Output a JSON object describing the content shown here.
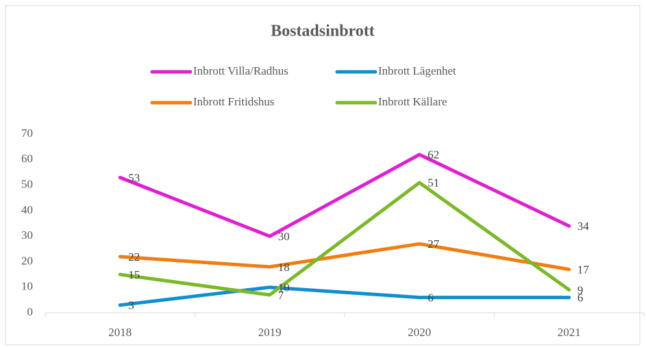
{
  "chart_data": {
    "type": "line",
    "title": "Bostadsinbrott",
    "categories": [
      "2018",
      "2019",
      "2020",
      "2021"
    ],
    "series": [
      {
        "name": "Inbrott Villa/Radhus",
        "color": "#e01fd0",
        "values": [
          53,
          30,
          62,
          34
        ]
      },
      {
        "name": "Inbrott Lägenhet",
        "color": "#0f8fd2",
        "values": [
          3,
          10,
          6,
          6
        ]
      },
      {
        "name": "Inbrott Fritidshus",
        "color": "#f07d12",
        "values": [
          22,
          18,
          27,
          17
        ]
      },
      {
        "name": "Inbrott Källare",
        "color": "#7bb82a",
        "values": [
          15,
          7,
          51,
          9
        ]
      }
    ],
    "ylim": [
      0,
      70
    ],
    "yticks": [
      0,
      10,
      20,
      30,
      40,
      50,
      60,
      70
    ],
    "grid": false,
    "legend": "top"
  }
}
